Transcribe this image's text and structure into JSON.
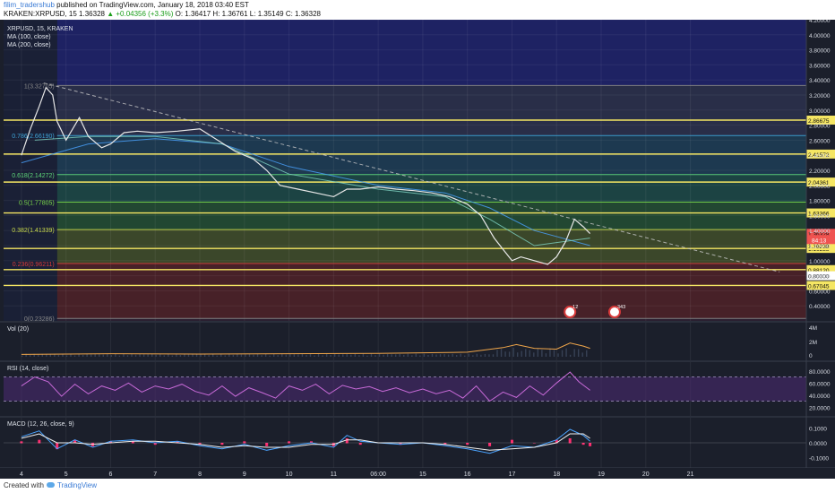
{
  "header": {
    "author": "filim_tradershub",
    "published": "published on TradingView.com, January 18, 2018 03:40 EST",
    "symbol_line": "KRAKEN:XRPUSD, 15",
    "last": "1.36328",
    "change": "▲ +0.04356 (+3.3%)",
    "ohlc": "O: 1.36417 H: 1.36761 L: 1.35149 C: 1.36328"
  },
  "footer": {
    "created_with": "Created with",
    "brand": "TradingView"
  },
  "chart_data": {
    "type": "line",
    "legend": [
      "XRPUSD, 15, KRAKEN",
      "MA (100, close)",
      "MA (200, close)"
    ],
    "y_range": [
      0.2,
      4.2
    ],
    "y_ticks": [
      "4.20000",
      "4.00000",
      "3.80000",
      "3.60000",
      "3.40000",
      "3.20000",
      "3.00000",
      "2.80000",
      "2.60000",
      "2.40000",
      "2.20000",
      "2.00000",
      "1.80000",
      "1.60000",
      "1.40000",
      "1.20000",
      "1.00000",
      "0.80000",
      "0.60000",
      "0.40000"
    ],
    "x_labels": [
      "4",
      "5",
      "6",
      "7",
      "8",
      "9",
      "10",
      "11",
      "06:00",
      "15",
      "16",
      "17",
      "18",
      "19",
      "20",
      "21"
    ],
    "price_path": [
      {
        "x": 4.0,
        "y": 2.4
      },
      {
        "x": 4.2,
        "y": 2.75
      },
      {
        "x": 4.4,
        "y": 3.05
      },
      {
        "x": 4.55,
        "y": 3.3
      },
      {
        "x": 4.7,
        "y": 3.2
      },
      {
        "x": 4.8,
        "y": 2.85
      },
      {
        "x": 5.0,
        "y": 2.6
      },
      {
        "x": 5.3,
        "y": 2.9
      },
      {
        "x": 5.5,
        "y": 2.65
      },
      {
        "x": 5.8,
        "y": 2.5
      },
      {
        "x": 6.0,
        "y": 2.55
      },
      {
        "x": 6.3,
        "y": 2.7
      },
      {
        "x": 6.6,
        "y": 2.72
      },
      {
        "x": 7.0,
        "y": 2.7
      },
      {
        "x": 7.5,
        "y": 2.72
      },
      {
        "x": 8.0,
        "y": 2.75
      },
      {
        "x": 8.4,
        "y": 2.6
      },
      {
        "x": 8.8,
        "y": 2.45
      },
      {
        "x": 9.2,
        "y": 2.35
      },
      {
        "x": 9.5,
        "y": 2.2
      },
      {
        "x": 9.8,
        "y": 2.0
      },
      {
        "x": 10.2,
        "y": 1.95
      },
      {
        "x": 10.6,
        "y": 1.9
      },
      {
        "x": 11.0,
        "y": 1.85
      },
      {
        "x": 11.3,
        "y": 1.95
      },
      {
        "x": 11.6,
        "y": 1.95
      },
      {
        "x": 12.0,
        "y": 1.98
      },
      {
        "x": 12.4,
        "y": 1.95
      },
      {
        "x": 12.8,
        "y": 1.93
      },
      {
        "x": 13.2,
        "y": 1.9
      },
      {
        "x": 13.6,
        "y": 1.85
      },
      {
        "x": 14.0,
        "y": 1.75
      },
      {
        "x": 14.3,
        "y": 1.6
      },
      {
        "x": 14.6,
        "y": 1.3
      },
      {
        "x": 14.8,
        "y": 1.15
      },
      {
        "x": 15.0,
        "y": 1.0
      },
      {
        "x": 15.2,
        "y": 1.05
      },
      {
        "x": 15.5,
        "y": 1.0
      },
      {
        "x": 15.8,
        "y": 0.95
      },
      {
        "x": 16.0,
        "y": 1.05
      },
      {
        "x": 16.2,
        "y": 1.25
      },
      {
        "x": 16.4,
        "y": 1.55
      },
      {
        "x": 16.6,
        "y": 1.45
      },
      {
        "x": 16.75,
        "y": 1.36
      }
    ],
    "ma100_path": [
      {
        "x": 4.3,
        "y": 2.6
      },
      {
        "x": 5.5,
        "y": 2.65
      },
      {
        "x": 7.0,
        "y": 2.65
      },
      {
        "x": 8.5,
        "y": 2.55
      },
      {
        "x": 10.0,
        "y": 2.15
      },
      {
        "x": 12.0,
        "y": 1.95
      },
      {
        "x": 13.5,
        "y": 1.85
      },
      {
        "x": 14.5,
        "y": 1.55
      },
      {
        "x": 15.5,
        "y": 1.2
      },
      {
        "x": 16.75,
        "y": 1.3
      }
    ],
    "ma200_path": [
      {
        "x": 4.0,
        "y": 2.3
      },
      {
        "x": 5.5,
        "y": 2.55
      },
      {
        "x": 7.0,
        "y": 2.62
      },
      {
        "x": 8.5,
        "y": 2.55
      },
      {
        "x": 10.0,
        "y": 2.25
      },
      {
        "x": 12.0,
        "y": 2.0
      },
      {
        "x": 13.5,
        "y": 1.9
      },
      {
        "x": 14.5,
        "y": 1.7
      },
      {
        "x": 15.5,
        "y": 1.4
      },
      {
        "x": 16.75,
        "y": 1.2
      }
    ],
    "fib_levels": [
      {
        "label": "1(3.32705)",
        "price": 3.327,
        "color": "#888888"
      },
      {
        "label": "0.786(2.66190)",
        "price": 2.662,
        "color": "#3fa5d8"
      },
      {
        "label": "0.618(2.14272)",
        "price": 2.143,
        "color": "#5fd87a"
      },
      {
        "label": "0.5(1.77805)",
        "price": 1.778,
        "color": "#7ad84a"
      },
      {
        "label": "0.382(1.41339)",
        "price": 1.413,
        "color": "#c8d84a"
      },
      {
        "label": "0.236(0.96211)",
        "price": 0.962,
        "color": "#d83a3a"
      },
      {
        "label": "0(0.23286)",
        "price": 0.233,
        "color": "#888888"
      }
    ],
    "horizontal_levels": [
      {
        "label": "2.86675",
        "price": 2.86675
      },
      {
        "label": "2.41572",
        "price": 2.41572
      },
      {
        "label": "2.04361",
        "price": 2.04361
      },
      {
        "label": "1.63366",
        "price": 1.63366
      },
      {
        "label": "1.16238",
        "price": 1.16238
      },
      {
        "label": "0.88120",
        "price": 0.8812
      },
      {
        "label": "0.67045",
        "price": 0.67045
      }
    ],
    "price_badges": [
      {
        "label": "1.36328",
        "price": 1.36328,
        "color": "#ef5350"
      },
      {
        "label": "1.16238",
        "price": 1.2,
        "color": "#f5e663"
      },
      {
        "label": "0.80000",
        "price": 0.8,
        "color": "#ffffff"
      }
    ],
    "price_badge_extra": {
      "label": "84:13",
      "price": 1.28
    },
    "trendline": {
      "x1": 4.5,
      "y1": 3.36,
      "x2": 21.0,
      "y2": 0.85
    },
    "events": [
      {
        "x": 16.3,
        "label": "12"
      },
      {
        "x": 17.3,
        "label": "343"
      }
    ],
    "volume": {
      "label": "Vol (20)",
      "ticks": [
        "4M",
        "2M",
        "0"
      ],
      "ma_path": [
        {
          "x": 4.0,
          "y": 0.3
        },
        {
          "x": 6.0,
          "y": 0.4
        },
        {
          "x": 8.0,
          "y": 0.35
        },
        {
          "x": 10.0,
          "y": 0.4
        },
        {
          "x": 12.0,
          "y": 0.45
        },
        {
          "x": 14.0,
          "y": 0.6
        },
        {
          "x": 14.8,
          "y": 1.2
        },
        {
          "x": 15.1,
          "y": 1.6
        },
        {
          "x": 15.5,
          "y": 1.1
        },
        {
          "x": 16.0,
          "y": 1.0
        },
        {
          "x": 16.3,
          "y": 1.8
        },
        {
          "x": 16.6,
          "y": 1.4
        },
        {
          "x": 16.75,
          "y": 1.1
        }
      ]
    },
    "rsi": {
      "label": "RSI (14, close)",
      "ticks": [
        "80.0000",
        "60.0000",
        "40.0000",
        "20.0000"
      ],
      "bands": [
        70,
        30
      ],
      "path": [
        {
          "x": 4.0,
          "y": 55
        },
        {
          "x": 4.3,
          "y": 70
        },
        {
          "x": 4.6,
          "y": 62
        },
        {
          "x": 4.9,
          "y": 38
        },
        {
          "x": 5.2,
          "y": 58
        },
        {
          "x": 5.5,
          "y": 42
        },
        {
          "x": 5.8,
          "y": 55
        },
        {
          "x": 6.1,
          "y": 48
        },
        {
          "x": 6.4,
          "y": 60
        },
        {
          "x": 6.7,
          "y": 45
        },
        {
          "x": 7.0,
          "y": 55
        },
        {
          "x": 7.3,
          "y": 50
        },
        {
          "x": 7.6,
          "y": 58
        },
        {
          "x": 7.9,
          "y": 46
        },
        {
          "x": 8.2,
          "y": 40
        },
        {
          "x": 8.5,
          "y": 55
        },
        {
          "x": 8.8,
          "y": 38
        },
        {
          "x": 9.1,
          "y": 52
        },
        {
          "x": 9.4,
          "y": 44
        },
        {
          "x": 9.7,
          "y": 35
        },
        {
          "x": 10.0,
          "y": 55
        },
        {
          "x": 10.3,
          "y": 48
        },
        {
          "x": 10.6,
          "y": 58
        },
        {
          "x": 10.9,
          "y": 42
        },
        {
          "x": 11.2,
          "y": 56
        },
        {
          "x": 11.5,
          "y": 50
        },
        {
          "x": 11.8,
          "y": 54
        },
        {
          "x": 12.1,
          "y": 46
        },
        {
          "x": 12.4,
          "y": 52
        },
        {
          "x": 12.7,
          "y": 44
        },
        {
          "x": 13.0,
          "y": 50
        },
        {
          "x": 13.3,
          "y": 42
        },
        {
          "x": 13.6,
          "y": 48
        },
        {
          "x": 13.9,
          "y": 35
        },
        {
          "x": 14.2,
          "y": 55
        },
        {
          "x": 14.5,
          "y": 30
        },
        {
          "x": 14.8,
          "y": 45
        },
        {
          "x": 15.1,
          "y": 36
        },
        {
          "x": 15.4,
          "y": 55
        },
        {
          "x": 15.7,
          "y": 40
        },
        {
          "x": 16.0,
          "y": 60
        },
        {
          "x": 16.3,
          "y": 78
        },
        {
          "x": 16.5,
          "y": 62
        },
        {
          "x": 16.75,
          "y": 48
        }
      ]
    },
    "macd": {
      "label": "MACD (12, 26, close, 9)",
      "ticks": [
        "0.1000",
        "0.0000",
        "-0.1000"
      ],
      "y_range": [
        -0.15,
        0.15
      ],
      "macd_path": [
        {
          "x": 4.0,
          "y": 0.04
        },
        {
          "x": 4.4,
          "y": 0.08
        },
        {
          "x": 4.8,
          "y": -0.04
        },
        {
          "x": 5.2,
          "y": 0.02
        },
        {
          "x": 5.6,
          "y": -0.03
        },
        {
          "x": 6.0,
          "y": 0.01
        },
        {
          "x": 6.5,
          "y": 0.02
        },
        {
          "x": 7.0,
          "y": 0.0
        },
        {
          "x": 7.5,
          "y": 0.01
        },
        {
          "x": 8.0,
          "y": -0.02
        },
        {
          "x": 8.5,
          "y": -0.04
        },
        {
          "x": 9.0,
          "y": -0.01
        },
        {
          "x": 9.5,
          "y": -0.05
        },
        {
          "x": 10.0,
          "y": -0.02
        },
        {
          "x": 10.5,
          "y": 0.0
        },
        {
          "x": 11.0,
          "y": -0.03
        },
        {
          "x": 11.3,
          "y": 0.05
        },
        {
          "x": 11.6,
          "y": 0.01
        },
        {
          "x": 12.0,
          "y": 0.0
        },
        {
          "x": 12.5,
          "y": -0.01
        },
        {
          "x": 13.0,
          "y": 0.0
        },
        {
          "x": 13.5,
          "y": -0.02
        },
        {
          "x": 14.0,
          "y": -0.04
        },
        {
          "x": 14.5,
          "y": -0.07
        },
        {
          "x": 15.0,
          "y": -0.02
        },
        {
          "x": 15.5,
          "y": -0.03
        },
        {
          "x": 16.0,
          "y": 0.02
        },
        {
          "x": 16.3,
          "y": 0.09
        },
        {
          "x": 16.6,
          "y": 0.05
        },
        {
          "x": 16.75,
          "y": 0.01
        }
      ],
      "signal_path": [
        {
          "x": 4.0,
          "y": 0.03
        },
        {
          "x": 4.4,
          "y": 0.06
        },
        {
          "x": 4.8,
          "y": 0.0
        },
        {
          "x": 5.2,
          "y": 0.0
        },
        {
          "x": 5.6,
          "y": -0.01
        },
        {
          "x": 6.0,
          "y": 0.0
        },
        {
          "x": 6.5,
          "y": 0.01
        },
        {
          "x": 7.0,
          "y": 0.01
        },
        {
          "x": 7.5,
          "y": 0.0
        },
        {
          "x": 8.0,
          "y": -0.01
        },
        {
          "x": 8.5,
          "y": -0.03
        },
        {
          "x": 9.0,
          "y": -0.02
        },
        {
          "x": 9.5,
          "y": -0.03
        },
        {
          "x": 10.0,
          "y": -0.03
        },
        {
          "x": 10.5,
          "y": -0.01
        },
        {
          "x": 11.0,
          "y": -0.01
        },
        {
          "x": 11.3,
          "y": 0.02
        },
        {
          "x": 11.6,
          "y": 0.02
        },
        {
          "x": 12.0,
          "y": 0.0
        },
        {
          "x": 12.5,
          "y": 0.0
        },
        {
          "x": 13.0,
          "y": 0.0
        },
        {
          "x": 13.5,
          "y": -0.01
        },
        {
          "x": 14.0,
          "y": -0.03
        },
        {
          "x": 14.5,
          "y": -0.05
        },
        {
          "x": 15.0,
          "y": -0.04
        },
        {
          "x": 15.5,
          "y": -0.03
        },
        {
          "x": 16.0,
          "y": 0.0
        },
        {
          "x": 16.3,
          "y": 0.06
        },
        {
          "x": 16.6,
          "y": 0.06
        },
        {
          "x": 16.75,
          "y": 0.03
        }
      ]
    }
  }
}
